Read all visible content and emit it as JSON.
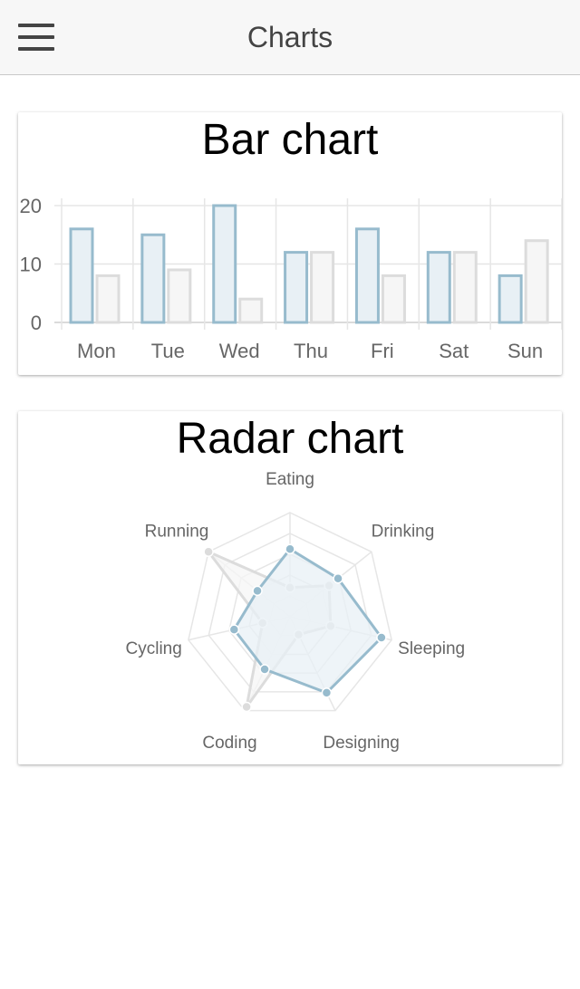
{
  "header": {
    "title": "Charts",
    "menu_icon": "hamburger-menu-icon"
  },
  "colors": {
    "series1_stroke": "#97bbcd",
    "series1_fill": "#e8f0f5",
    "series2_stroke": "#dcdcdc",
    "series2_fill": "#f6f6f6",
    "grid": "#e6e6e6"
  },
  "chart_data": [
    {
      "type": "bar",
      "title": "Bar chart",
      "categories": [
        "Mon",
        "Tue",
        "Wed",
        "Thu",
        "Fri",
        "Sat",
        "Sun"
      ],
      "series": [
        {
          "values": [
            16,
            15,
            20,
            12,
            16,
            12,
            8
          ]
        },
        {
          "values": [
            8,
            9,
            4,
            12,
            8,
            12,
            14
          ]
        }
      ],
      "ylim": [
        0,
        20
      ],
      "yticks": [
        0,
        10,
        20
      ],
      "grid": true
    },
    {
      "type": "radar",
      "title": "Radar chart",
      "categories": [
        "Eating",
        "Drinking",
        "Sleeping",
        "Designing",
        "Coding",
        "Cycling",
        "Running"
      ],
      "series": [
        {
          "values": [
            65,
            59,
            90,
            81,
            56,
            55,
            40
          ]
        },
        {
          "values": [
            28,
            48,
            40,
            19,
            96,
            27,
            100
          ]
        }
      ],
      "rlim": [
        0,
        100
      ],
      "grid": true
    }
  ]
}
